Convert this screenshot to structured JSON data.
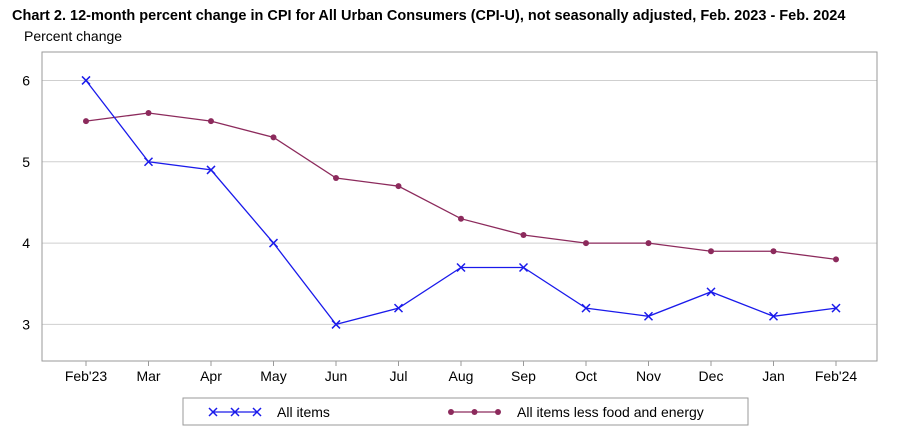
{
  "chart_data": {
    "type": "line",
    "title": "Chart 2. 12-month percent change in CPI for All Urban Consumers (CPI-U), not seasonally adjusted, Feb. 2023 - Feb. 2024",
    "ylabel": "Percent change",
    "xlabel": "",
    "categories": [
      "Feb'23",
      "Mar",
      "Apr",
      "May",
      "Jun",
      "Jul",
      "Aug",
      "Sep",
      "Oct",
      "Nov",
      "Dec",
      "Jan",
      "Feb'24"
    ],
    "ylim": [
      2.55,
      6.35
    ],
    "yticks": [
      3,
      4,
      5,
      6
    ],
    "grid": true,
    "legend_position": "bottom",
    "series": [
      {
        "name": "All items",
        "color": "#1a1aeb",
        "marker": "x",
        "values": [
          6.0,
          5.0,
          4.9,
          4.0,
          3.0,
          3.2,
          3.7,
          3.7,
          3.2,
          3.1,
          3.4,
          3.1,
          3.2
        ]
      },
      {
        "name": "All items less food and energy",
        "color": "#8c2a5c",
        "marker": "circle",
        "values": [
          5.5,
          5.6,
          5.5,
          5.3,
          4.8,
          4.7,
          4.3,
          4.1,
          4.0,
          4.0,
          3.9,
          3.9,
          3.8
        ]
      }
    ]
  }
}
